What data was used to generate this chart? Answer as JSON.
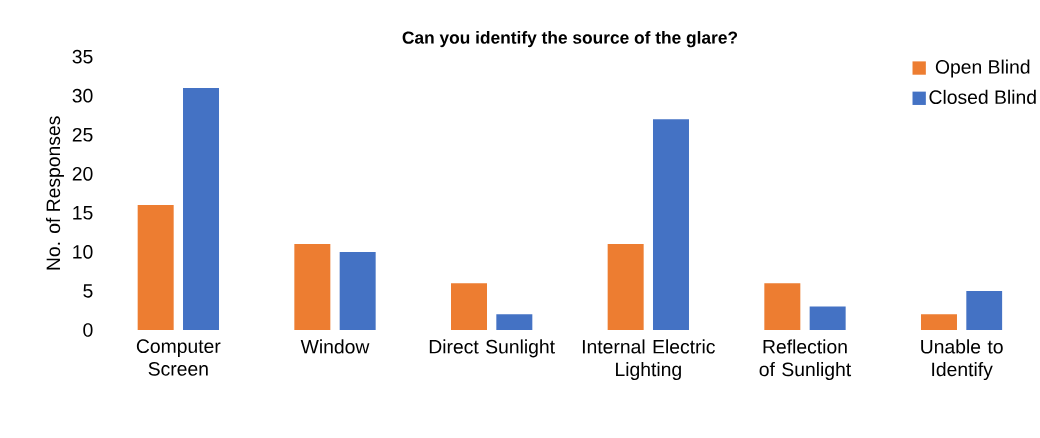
{
  "chart_data": {
    "type": "bar",
    "title": "Can you identify the source of the glare?",
    "ylabel": "No. of Responses",
    "categories": [
      "Computer Screen",
      "Window",
      "Direct Sunlight",
      "Internal Electric Lighting",
      "Reflection of Sunlight",
      "Unable to Identify"
    ],
    "series": [
      {
        "name": "Open Blind",
        "color": "#ed7d31",
        "values": [
          16,
          11,
          6,
          11,
          6,
          2
        ]
      },
      {
        "name": "Closed Blind",
        "color": "#4472c4",
        "values": [
          31,
          10,
          2,
          27,
          3,
          5
        ]
      }
    ],
    "ylim": [
      0,
      35
    ],
    "yticks": [
      0,
      5,
      10,
      15,
      20,
      25,
      30,
      35
    ],
    "legend": "top right"
  }
}
